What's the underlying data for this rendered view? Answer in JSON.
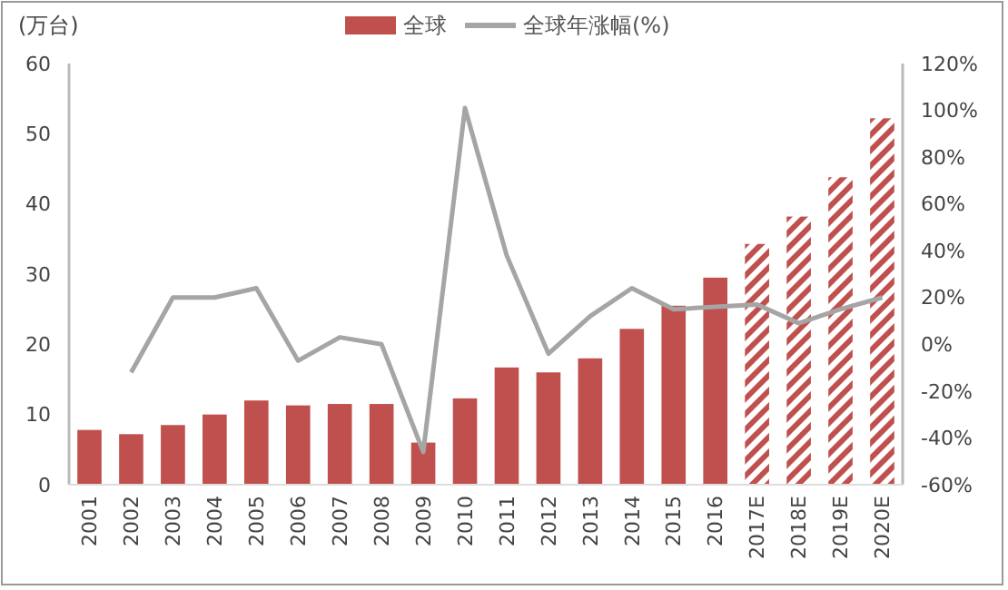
{
  "chart_data": {
    "type": "bar",
    "ylabel": "(万台)",
    "categories": [
      "2001",
      "2002",
      "2003",
      "2004",
      "2005",
      "2006",
      "2007",
      "2008",
      "2009",
      "2010",
      "2011",
      "2012",
      "2013",
      "2014",
      "2015",
      "2016",
      "2017E",
      "2018E",
      "2019E",
      "2020E"
    ],
    "stacked": true,
    "legend": "top",
    "grid": false,
    "series": [
      {
        "name": "全球",
        "color": "#c0504d",
        "values": [
          7.8,
          7.2,
          8.5,
          10,
          12,
          11.3,
          11.5,
          11.5,
          6,
          12.3,
          16.7,
          16,
          18,
          22.2,
          25.5,
          29.5,
          null,
          null,
          null,
          null
        ]
      },
      {
        "color": "#c0504d",
        "values": [
          null,
          null,
          null,
          null,
          null,
          null,
          null,
          null,
          null,
          null,
          null,
          null,
          null,
          null,
          null,
          null,
          34.3,
          38.2,
          43.8,
          52.2
        ]
      },
      {
        "name": "全球年涨幅(%)",
        "type": "line",
        "axis": "y2",
        "color": "#a5a5a5",
        "values": [
          null,
          -12,
          20,
          20,
          24,
          -7,
          3,
          0,
          -46,
          101,
          38,
          -4,
          12,
          24,
          15,
          16,
          17,
          9,
          15,
          20
        ]
      }
    ],
    "ylim": [
      0,
      60
    ],
    "yticks": [
      0,
      10,
      20,
      30,
      40,
      50,
      60
    ],
    "y2lim": [
      -60,
      120
    ],
    "y2ticks": [
      {
        "value": -60,
        "label": "-60%"
      },
      {
        "value": -40,
        "label": "-40%"
      },
      {
        "value": -20,
        "label": "-20%"
      },
      {
        "value": 0,
        "label": "0%"
      },
      {
        "value": 20,
        "label": "20%"
      },
      {
        "value": 40,
        "label": "40%"
      },
      {
        "value": 60,
        "label": "60%"
      },
      {
        "value": 80,
        "label": "80%"
      },
      {
        "value": 100,
        "label": "100%"
      },
      {
        "value": 120,
        "label": "120%"
      }
    ]
  }
}
